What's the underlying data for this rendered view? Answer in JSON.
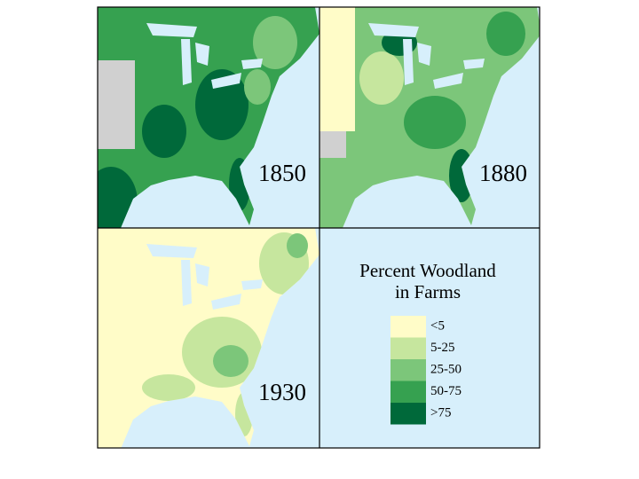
{
  "panels": [
    {
      "year": "1850"
    },
    {
      "year": "1880"
    },
    {
      "year": "1930"
    }
  ],
  "legend": {
    "title_lines": [
      "Percent Woodland",
      "in Farms"
    ],
    "items": [
      {
        "label": "<5",
        "color": "#fffcc8"
      },
      {
        "label": "5-25",
        "color": "#c6e69e"
      },
      {
        "label": "25-50",
        "color": "#7cc67a"
      },
      {
        "label": "50-75",
        "color": "#36a150"
      },
      {
        "label": ">75",
        "color": "#00693a"
      }
    ]
  }
}
